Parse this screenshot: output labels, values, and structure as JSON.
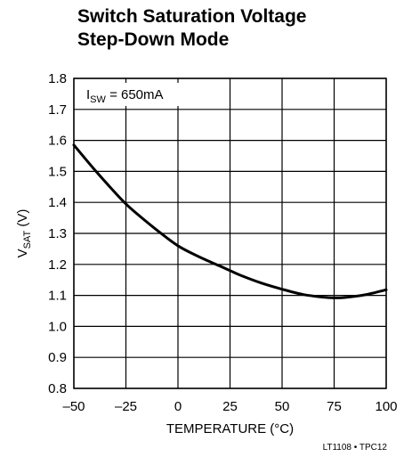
{
  "chart_data": {
    "type": "line",
    "title": [
      "Switch Saturation Voltage",
      "Step-Down Mode"
    ],
    "xlabel": "TEMPERATURE (°C)",
    "ylabel": {
      "main": "V",
      "sub": "SAT",
      "unit": " (V)"
    },
    "xlim": [
      -50,
      100
    ],
    "ylim": [
      0.8,
      1.8
    ],
    "xticks": [
      -50,
      -25,
      0,
      25,
      50,
      75,
      100
    ],
    "xtick_labels": [
      "–50",
      "–25",
      "0",
      "25",
      "50",
      "75",
      "100"
    ],
    "yticks": [
      0.8,
      0.9,
      1.0,
      1.1,
      1.2,
      1.3,
      1.4,
      1.5,
      1.6,
      1.7,
      1.8
    ],
    "ytick_labels": [
      "0.8",
      "0.9",
      "1.0",
      "1.1",
      "1.2",
      "1.3",
      "1.4",
      "1.5",
      "1.6",
      "1.7",
      "1.8"
    ],
    "grid": true,
    "annotation": {
      "main": "I",
      "sub": "SW",
      "rest": " = 650mA"
    },
    "series": [
      {
        "x": [
          -50,
          -40,
          -30,
          -25,
          -20,
          -10,
          0,
          10,
          20,
          25,
          30,
          40,
          50,
          60,
          70,
          75,
          80,
          90,
          100
        ],
        "y": [
          1.585,
          1.505,
          1.43,
          1.395,
          1.365,
          1.31,
          1.26,
          1.225,
          1.195,
          1.18,
          1.165,
          1.14,
          1.12,
          1.103,
          1.094,
          1.092,
          1.093,
          1.102,
          1.118
        ]
      }
    ],
    "footnote": "LT1108 • TPC12"
  },
  "colors": {
    "line": "#000000",
    "grid": "#000000",
    "background": "#ffffff"
  }
}
